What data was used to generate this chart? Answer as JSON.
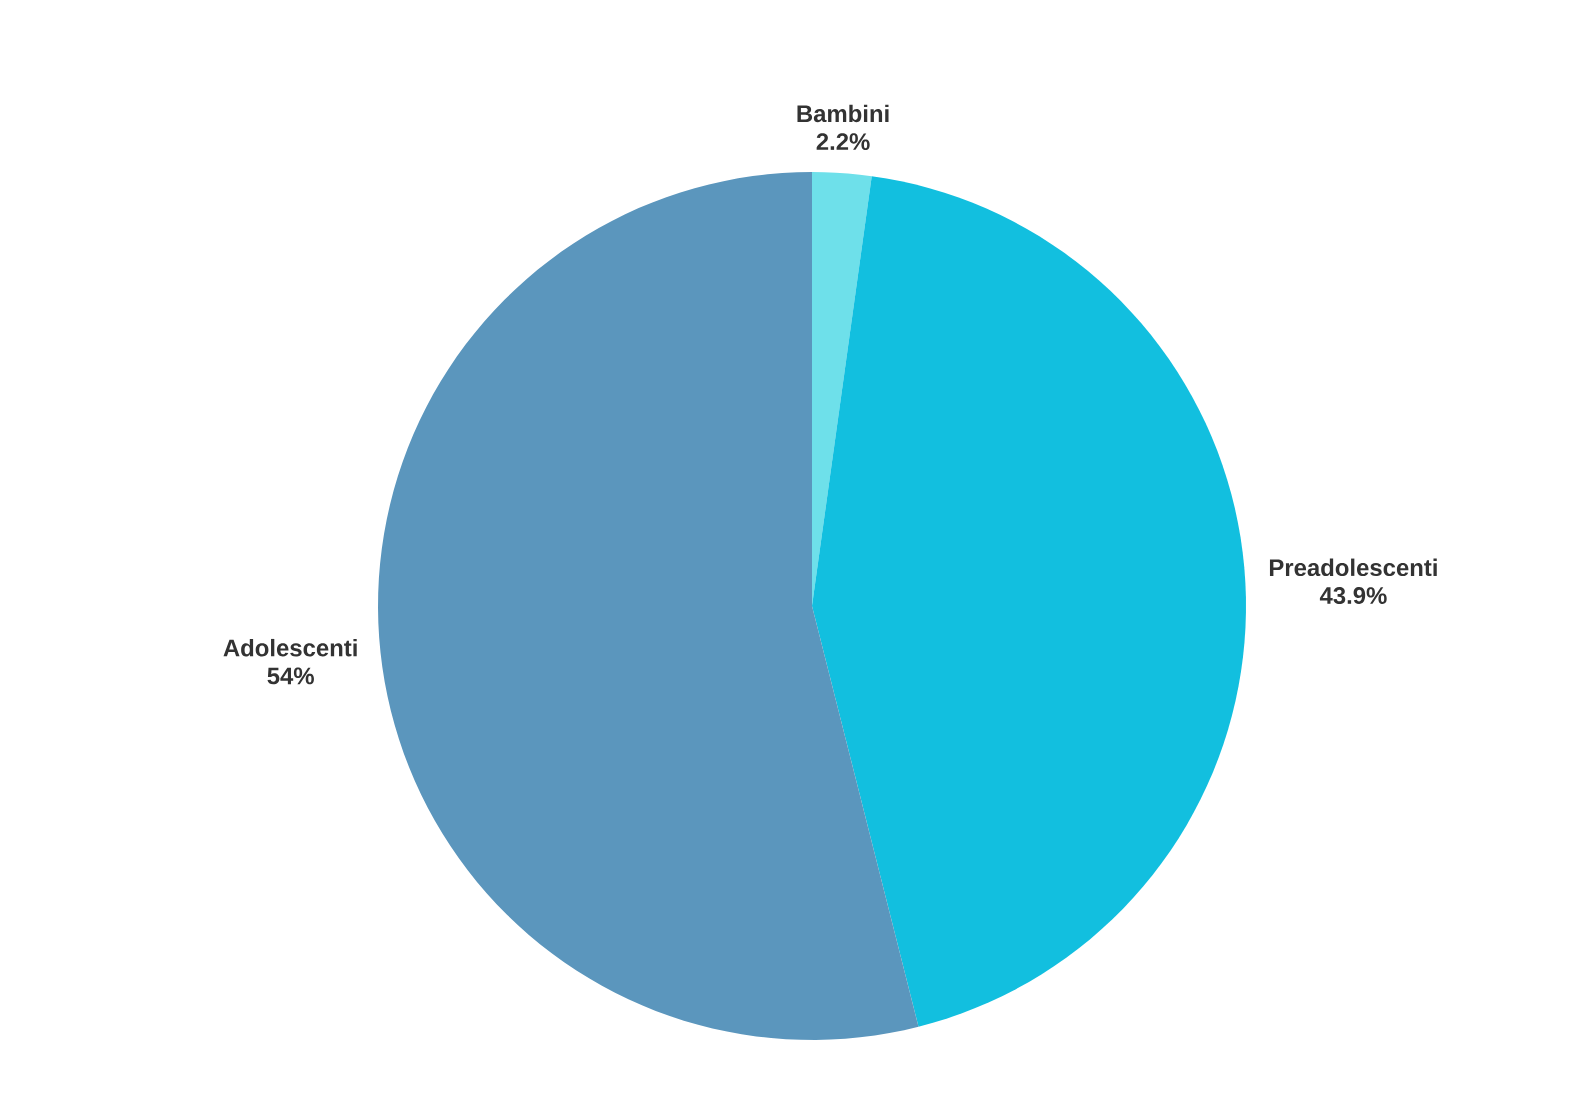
{
  "chart_data": {
    "type": "pie",
    "categories": [
      "Bambini",
      "Preadolescenti",
      "Adolescenti"
    ],
    "values": [
      2.2,
      43.9,
      54
    ],
    "value_labels": [
      "2.2%",
      "43.9%",
      "54%"
    ],
    "colors": [
      "#6ee0ea",
      "#12bfdf",
      "#5b96bd"
    ]
  }
}
